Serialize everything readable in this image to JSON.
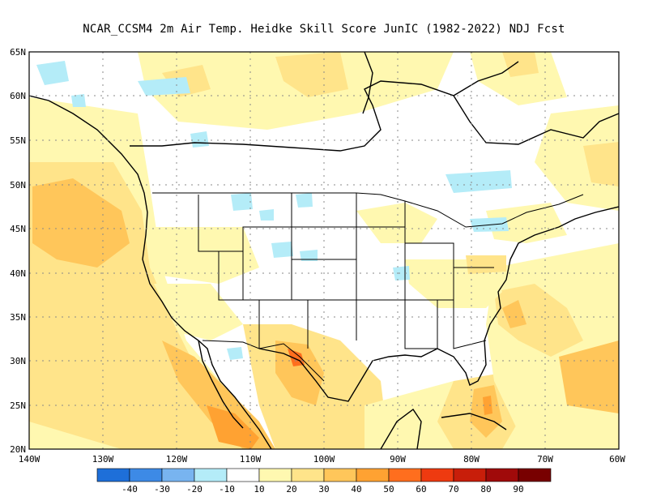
{
  "title": "NCAR_CCSM4  2m Air Temp. Heidke Skill Score JunIC (1982-2022) NDJ Fcst",
  "map": {
    "lon_range": [
      -140,
      -60
    ],
    "lat_range": [
      20,
      65
    ],
    "lat_labels": [
      "20N",
      "25N",
      "30N",
      "35N",
      "40N",
      "45N",
      "50N",
      "55N",
      "60N",
      "65N"
    ],
    "lon_labels": [
      "140W",
      "130W",
      "120W",
      "110W",
      "100W",
      "90W",
      "80W",
      "70W",
      "60W"
    ],
    "grid": "dotted"
  },
  "colorbar": {
    "labels": [
      "-40",
      "-30",
      "-20",
      "-10",
      "10",
      "20",
      "30",
      "40",
      "50",
      "60",
      "70",
      "80",
      "90"
    ],
    "colors": [
      "#1e6fd9",
      "#3d8ae6",
      "#78b4f0",
      "#b4ecf8",
      "#ffffff",
      "#fff8b0",
      "#ffe48a",
      "#ffc65a",
      "#ffa232",
      "#ff6e1e",
      "#ee3a10",
      "#c81e0a",
      "#a00a0a",
      "#780000"
    ]
  }
}
